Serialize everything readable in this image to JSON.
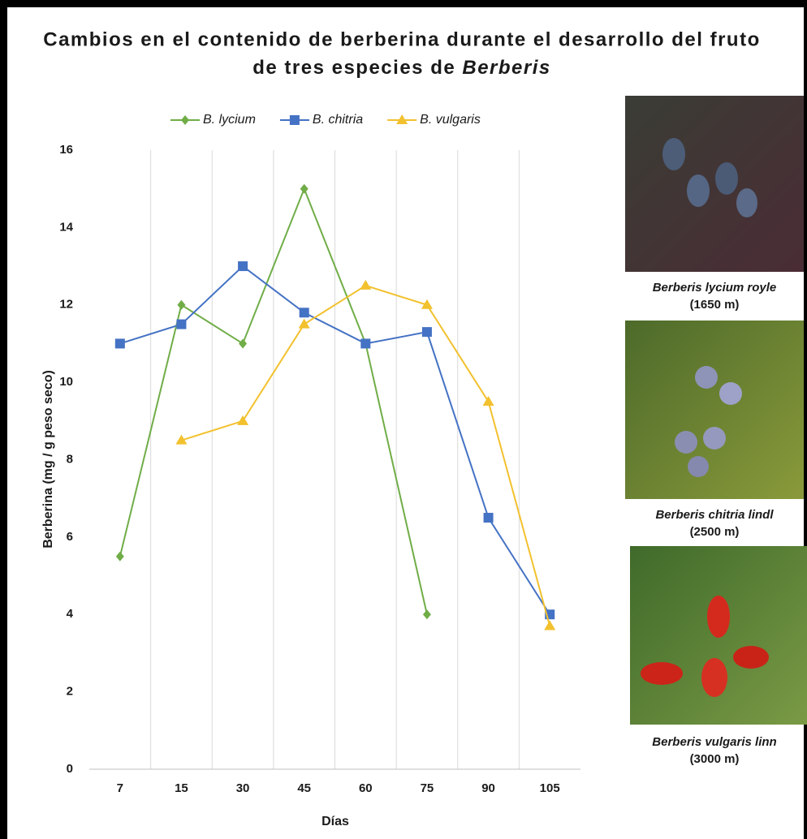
{
  "chart_data": {
    "type": "line",
    "title": [
      "Cambios en el contenido de berberina durante el desarrollo del fruto",
      "de tres especies de ",
      "Berberis"
    ],
    "categories": [
      "7",
      "15",
      "30",
      "45",
      "60",
      "75",
      "90",
      "105"
    ],
    "series": [
      {
        "name": "B. lycium",
        "color": "#70ad47",
        "marker": "diamond",
        "values": [
          5.5,
          12,
          11,
          15,
          11,
          4,
          null,
          null
        ]
      },
      {
        "name": "B. chitria",
        "color": "#4472c4",
        "marker": "square",
        "values": [
          11,
          11.5,
          13,
          11.8,
          11,
          11.3,
          6.5,
          4
        ]
      },
      {
        "name": "B. vulgaris",
        "color": "#f2c12e",
        "marker": "triangle",
        "values": [
          null,
          8.5,
          9,
          11.5,
          12.5,
          12,
          9.5,
          3.7
        ]
      }
    ],
    "ylim": [
      0,
      16
    ],
    "yticks": [
      0,
      2,
      4,
      6,
      8,
      10,
      12,
      14,
      16
    ],
    "ylabel": "Berberina (mg / g peso seco)",
    "xlabel": "Días",
    "grid": true,
    "legend": "top"
  },
  "images": [
    {
      "caption": "Berberis lycium royle",
      "altitude": "(1650 m)"
    },
    {
      "caption": "Berberis chitria lindl",
      "altitude": "(2500 m)"
    },
    {
      "caption": "Berberis vulgaris linn",
      "altitude": "(3000 m)"
    }
  ]
}
